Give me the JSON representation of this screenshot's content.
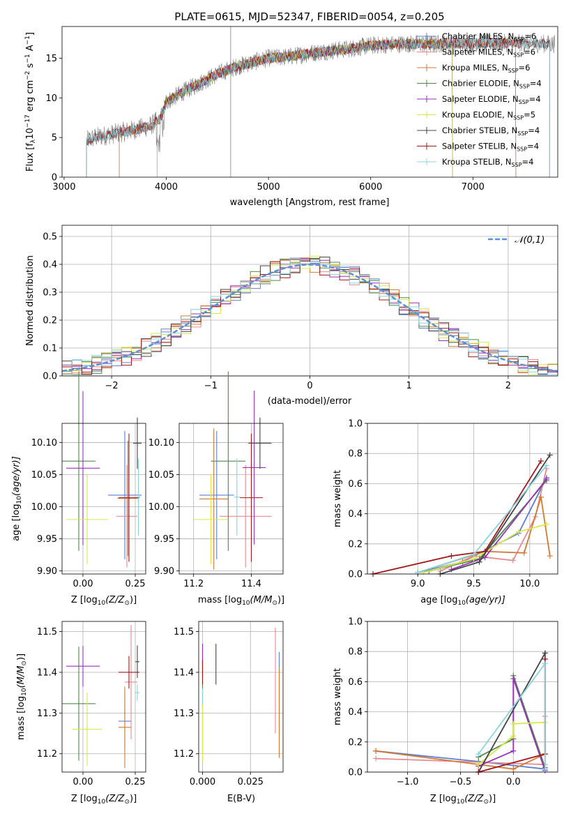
{
  "chart_data": [
    {
      "id": "spectrum",
      "type": "line",
      "title": "PLATE=0615, MJD=52347, FIBERID=0054, z=0.205",
      "xlabel": "wavelength [Angstrom, rest frame]",
      "ylabel_main": "Flux [f",
      "ylabel_sub1": "λ",
      "ylabel_mid": "10",
      "ylabel_sup1": "−17",
      "ylabel_mid2": " erg cm",
      "ylabel_sup2": "−2",
      "ylabel_mid3": " s",
      "ylabel_sup3": "−1",
      "ylabel_mid4": " A",
      "ylabel_sup4": "−1",
      "ylabel_end": "]",
      "xlim": [
        2980,
        7830
      ],
      "ylim": [
        0,
        19
      ],
      "xticks": [
        "3000",
        "4000",
        "5000",
        "6000",
        "7000"
      ],
      "yticks": [
        "0",
        "5",
        "10",
        "15"
      ],
      "legend_position": "right",
      "legend": [
        {
          "label": "Chabrier MILES, N",
          "sub": "SSP",
          "tail": "=6",
          "color": "#5b7fd6"
        },
        {
          "label": "Salpeter MILES, N",
          "sub": "SSP",
          "tail": "=6",
          "color": "#e8898d"
        },
        {
          "label": "Kroupa MILES, N",
          "sub": "SSP",
          "tail": "=6",
          "color": "#d07a32"
        },
        {
          "label": "Chabrier ELODIE, N",
          "sub": "SSP",
          "tail": "=4",
          "color": "#4f8a4a"
        },
        {
          "label": "Salpeter ELODIE, N",
          "sub": "SSP",
          "tail": "=4",
          "color": "#9b2fbd"
        },
        {
          "label": "Kroupa ELODIE, N",
          "sub": "SSP",
          "tail": "=5",
          "color": "#d8e84a"
        },
        {
          "label": "Chabrier STELIB, N",
          "sub": "SSP",
          "tail": "=4",
          "color": "#444444"
        },
        {
          "label": "Salpeter STELIB, N",
          "sub": "SSP",
          "tail": "=4",
          "color": "#a01818"
        },
        {
          "label": "Kroupa STELIB, N",
          "sub": "SSP",
          "tail": "=4",
          "color": "#88d4de"
        }
      ],
      "data_color": "#808080",
      "continuum": {
        "x": [
          3200,
          3300,
          3500,
          3700,
          3850,
          3950,
          4000,
          4200,
          4500,
          4700,
          5000,
          5200,
          5500,
          5800,
          6000,
          6300,
          6600,
          7000,
          7400,
          7750
        ],
        "y": [
          4.5,
          5.0,
          5.5,
          6.0,
          6.5,
          7.5,
          9.5,
          11.0,
          13.0,
          14.0,
          15.0,
          15.2,
          15.8,
          16.2,
          16.6,
          16.8,
          16.8,
          16.9,
          16.9,
          16.8
        ]
      },
      "model_x_ranges": {
        "MILES": [
          3540,
          7420
        ],
        "ELODIE": [
          3910,
          6800
        ],
        "STELIB": [
          3220,
          7750
        ]
      }
    },
    {
      "id": "residuals",
      "type": "histogram",
      "xlabel": "(data-model)/error",
      "ylabel": "Normed distribution",
      "xlim": [
        -2.5,
        2.5
      ],
      "ylim": [
        0,
        0.54
      ],
      "xticks": [
        "−2",
        "−1",
        "0",
        "1",
        "2"
      ],
      "yticks": [
        "0.0",
        "0.1",
        "0.2",
        "0.3",
        "0.4",
        "0.5"
      ],
      "legend_label": "𝒩(0,1)",
      "legend_position": "upper right",
      "normal_color": "#5b8fd6"
    },
    {
      "id": "age_vs_Z",
      "type": "scatter",
      "xlabel": "Z [log",
      "xlabel_sub": "10",
      "xlabel_tail": "(Z/Z",
      "xlabel_sun": "⊙",
      "xlabel_end": ")]",
      "ylabel": "age  [log",
      "ylabel_sub": "10",
      "ylabel_tail": "(age/yr)]",
      "xlim": [
        -0.1,
        0.3
      ],
      "ylim": [
        9.895,
        10.13
      ],
      "xticks": [
        "0.00",
        "0.25"
      ],
      "yticks": [
        "9.90",
        "9.95",
        "10.00",
        "10.05",
        "10.10"
      ],
      "points": [
        {
          "x": 0.2,
          "y": 10.018,
          "dx": 0.08,
          "dy": 0.1,
          "color": "#5b7fd6"
        },
        {
          "x": 0.21,
          "y": 9.985,
          "dx": 0.05,
          "dy": 0.08,
          "color": "#e8898d"
        },
        {
          "x": 0.215,
          "y": 10.013,
          "dx": 0.05,
          "dy": 0.09,
          "color": "#d07a32"
        },
        {
          "x": -0.02,
          "y": 10.071,
          "dx": 0.08,
          "dy": 0.14,
          "color": "#4f8a4a"
        },
        {
          "x": 0.0,
          "y": 10.06,
          "dx": 0.08,
          "dy": 0.12,
          "color": "#9b2fbd"
        },
        {
          "x": 0.02,
          "y": 9.98,
          "dx": 0.1,
          "dy": 0.07,
          "color": "#d8e84a"
        },
        {
          "x": 0.26,
          "y": 10.099,
          "dx": 0.02,
          "dy": 0.04,
          "color": "#444444"
        },
        {
          "x": 0.22,
          "y": 10.014,
          "dx": 0.05,
          "dy": 0.1,
          "color": "#a01818"
        },
        {
          "x": 0.265,
          "y": 10.015,
          "dx": 0.01,
          "dy": 0.06,
          "color": "#88d4de"
        }
      ]
    },
    {
      "id": "age_vs_mass",
      "type": "scatter",
      "xlabel": "mass [log",
      "xlabel_sub": "10",
      "xlabel_tail": "(M/M",
      "xlabel_sun": "⊙",
      "xlabel_end": ")]",
      "xlim": [
        11.15,
        11.51
      ],
      "ylim": [
        9.895,
        10.13
      ],
      "xticks": [
        "11.2",
        "11.4"
      ],
      "yticks": [
        "9.90",
        "9.95",
        "10.00",
        "10.05",
        "10.10"
      ],
      "points": [
        {
          "x": 11.28,
          "y": 10.018,
          "dx": 0.06,
          "dy": 0.1,
          "color": "#5b7fd6"
        },
        {
          "x": 11.38,
          "y": 9.985,
          "dx": 0.09,
          "dy": 0.08,
          "color": "#e8898d"
        },
        {
          "x": 11.27,
          "y": 10.012,
          "dx": 0.05,
          "dy": 0.11,
          "color": "#d07a32"
        },
        {
          "x": 11.32,
          "y": 10.071,
          "dx": 0.06,
          "dy": 0.14,
          "color": "#4f8a4a"
        },
        {
          "x": 11.41,
          "y": 10.061,
          "dx": 0.04,
          "dy": 0.12,
          "color": "#9b2fbd"
        },
        {
          "x": 11.26,
          "y": 9.98,
          "dx": 0.06,
          "dy": 0.07,
          "color": "#d8e84a"
        },
        {
          "x": 11.43,
          "y": 10.099,
          "dx": 0.04,
          "dy": 0.04,
          "color": "#444444"
        },
        {
          "x": 11.4,
          "y": 10.014,
          "dx": 0.04,
          "dy": 0.1,
          "color": "#a01818"
        },
        {
          "x": 11.35,
          "y": 10.015,
          "dx": 0.01,
          "dy": 0.06,
          "color": "#88d4de"
        }
      ]
    },
    {
      "id": "mass_weight_vs_age",
      "type": "line",
      "xlabel": "age  [log",
      "xlabel_sub": "10",
      "xlabel_tail": "(age/yr)]",
      "ylabel": "mass weight",
      "xlim": [
        8.55,
        10.25
      ],
      "ylim": [
        0,
        1.0
      ],
      "xticks": [
        "9.0",
        "9.5",
        "10.0"
      ],
      "yticks": [
        "0.0",
        "0.2",
        "0.4",
        "0.6",
        "0.8",
        "1.0"
      ],
      "series": [
        {
          "color": "#5b7fd6",
          "x": [
            9.0,
            9.4,
            9.9,
            10.15
          ],
          "y": [
            0.01,
            0.08,
            0.27,
            0.64
          ]
        },
        {
          "color": "#e8898d",
          "x": [
            9.2,
            9.5,
            9.85,
            10.05,
            10.15
          ],
          "y": [
            0.02,
            0.12,
            0.09,
            0.38,
            0.7
          ]
        },
        {
          "color": "#d07a32",
          "x": [
            9.0,
            9.6,
            9.95,
            10.1,
            10.18
          ],
          "y": [
            0.01,
            0.15,
            0.14,
            0.51,
            0.12
          ]
        },
        {
          "color": "#4f8a4a",
          "x": [
            9.1,
            9.55,
            10.15
          ],
          "y": [
            0.02,
            0.1,
            0.62
          ]
        },
        {
          "color": "#9b2fbd",
          "x": [
            9.3,
            9.6,
            10.15
          ],
          "y": [
            0.03,
            0.11,
            0.63
          ]
        },
        {
          "color": "#d8e84a",
          "x": [
            9.05,
            9.5,
            9.9,
            10.15
          ],
          "y": [
            0.01,
            0.1,
            0.28,
            0.33
          ]
        },
        {
          "color": "#444444",
          "x": [
            9.2,
            9.55,
            10.18
          ],
          "y": [
            0.0,
            0.08,
            0.79
          ]
        },
        {
          "color": "#a01818",
          "x": [
            8.6,
            9.3,
            9.6,
            10.1
          ],
          "y": [
            0.0,
            0.12,
            0.15,
            0.75
          ]
        },
        {
          "color": "#88d4de",
          "x": [
            9.0,
            9.5,
            10.15
          ],
          "y": [
            0.01,
            0.13,
            0.72
          ]
        }
      ]
    },
    {
      "id": "mass_vs_Z",
      "type": "scatter",
      "xlabel": "Z [log",
      "xlabel_sub": "10",
      "xlabel_tail": "(Z/Z",
      "xlabel_sun": "⊙",
      "xlabel_end": ")]",
      "ylabel": "mass [log",
      "ylabel_sub": "10",
      "ylabel_tail": "(M/M",
      "ylabel_sun": "⊙",
      "ylabel_end": ")]",
      "xlim": [
        -0.1,
        0.3
      ],
      "ylim": [
        11.155,
        11.525
      ],
      "xticks": [
        "0.00",
        "0.25"
      ],
      "yticks": [
        "11.2",
        "11.3",
        "11.4",
        "11.5"
      ],
      "points": [
        {
          "x": 0.2,
          "y": 11.28,
          "dx": 0.03,
          "dy": 0.07,
          "color": "#5b7fd6"
        },
        {
          "x": 0.23,
          "y": 11.376,
          "dx": 0.03,
          "dy": 0.14,
          "color": "#e8898d"
        },
        {
          "x": 0.2,
          "y": 11.265,
          "dx": 0.03,
          "dy": 0.1,
          "color": "#d07a32"
        },
        {
          "x": -0.02,
          "y": 11.323,
          "dx": 0.08,
          "dy": 0.14,
          "color": "#4f8a4a"
        },
        {
          "x": 0.0,
          "y": 11.415,
          "dx": 0.08,
          "dy": 0.05,
          "color": "#9b2fbd"
        },
        {
          "x": 0.02,
          "y": 11.26,
          "dx": 0.07,
          "dy": 0.09,
          "color": "#d8e84a"
        },
        {
          "x": 0.26,
          "y": 11.426,
          "dx": 0.01,
          "dy": 0.04,
          "color": "#444444"
        },
        {
          "x": 0.22,
          "y": 11.4,
          "dx": 0.05,
          "dy": 0.04,
          "color": "#a01818"
        },
        {
          "x": 0.26,
          "y": 11.35,
          "dx": 0.01,
          "dy": 0.02,
          "color": "#88d4de"
        }
      ]
    },
    {
      "id": "mass_vs_EBV",
      "type": "scatter",
      "xlabel": "E(B-V)",
      "xlim": [
        -0.002,
        0.042
      ],
      "ylim": [
        11.155,
        11.525
      ],
      "xticks": [
        "0.000",
        "0.025"
      ],
      "yticks": [
        "11.2",
        "11.3",
        "11.4",
        "11.5"
      ],
      "points": [
        {
          "x": 0.04,
          "y": 11.35,
          "dy": 0.1,
          "color": "#5b7fd6"
        },
        {
          "x": 0.038,
          "y": 11.38,
          "dy": 0.13,
          "color": "#e8898d"
        },
        {
          "x": 0.04,
          "y": 11.3,
          "dy": 0.11,
          "color": "#d07a32"
        },
        {
          "x": 0.0,
          "y": 11.32,
          "dy": 0.12,
          "color": "#4f8a4a"
        },
        {
          "x": 0.0,
          "y": 11.43,
          "dy": 0.04,
          "color": "#9b2fbd"
        },
        {
          "x": 0.0,
          "y": 11.26,
          "dy": 0.08,
          "color": "#d8e84a"
        },
        {
          "x": 0.007,
          "y": 11.42,
          "dy": 0.05,
          "color": "#444444"
        },
        {
          "x": 0.0,
          "y": 11.4,
          "dy": 0.03,
          "color": "#a01818"
        },
        {
          "x": 0.0,
          "y": 11.34,
          "dy": 0.02,
          "color": "#88d4de"
        }
      ]
    },
    {
      "id": "mass_weight_vs_Z",
      "type": "line",
      "xlabel": "Z [log",
      "xlabel_sub": "10",
      "xlabel_tail": "(Z/Z",
      "xlabel_sun": "⊙",
      "xlabel_end": ")]",
      "ylabel": "mass weight",
      "xlim": [
        -1.38,
        0.42
      ],
      "ylim": [
        0,
        1.0
      ],
      "xticks": [
        "−1.0",
        "−0.5",
        "0.0"
      ],
      "yticks": [
        "0.0",
        "0.2",
        "0.4",
        "0.6",
        "0.8",
        "1.0"
      ],
      "series": [
        {
          "color": "#5b7fd6",
          "x": [
            -1.3,
            -0.33,
            0.3
          ],
          "y": [
            0.14,
            0.07,
            0.02
          ]
        },
        {
          "color": "#e8898d",
          "x": [
            -1.3,
            0.3,
            0.3
          ],
          "y": [
            0.09,
            0.05,
            0.37
          ]
        },
        {
          "color": "#d07a32",
          "x": [
            -1.3,
            0.0,
            0.3
          ],
          "y": [
            0.14,
            0.02,
            0.12
          ]
        },
        {
          "color": "#4f8a4a",
          "x": [
            -0.33,
            0.0,
            0.0,
            0.3
          ],
          "y": [
            0.1,
            0.22,
            0.64,
            0.03
          ]
        },
        {
          "color": "#9b2fbd",
          "x": [
            -0.33,
            0.0,
            0.0,
            0.3
          ],
          "y": [
            0.04,
            0.14,
            0.62,
            0.01
          ]
        },
        {
          "color": "#d8e84a",
          "x": [
            -0.33,
            0.0,
            0.0,
            0.3
          ],
          "y": [
            0.05,
            0.24,
            0.32,
            0.33
          ]
        },
        {
          "color": "#444444",
          "x": [
            -0.33,
            0.3,
            0.3
          ],
          "y": [
            0.0,
            0.79,
            0.12
          ]
        },
        {
          "color": "#a01818",
          "x": [
            -0.33,
            0.3,
            0.3
          ],
          "y": [
            0.0,
            0.12,
            0.75
          ]
        },
        {
          "color": "#88d4de",
          "x": [
            -0.33,
            0.3,
            0.3
          ],
          "y": [
            0.12,
            0.72,
            0.02
          ]
        }
      ]
    }
  ]
}
